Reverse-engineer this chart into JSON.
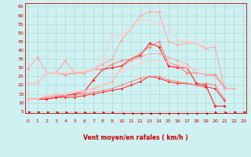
{
  "bg_color": "#cff1f1",
  "grid_color": "#aadddd",
  "xlabel": "Vent moyen/en rafales ( km/h )",
  "ylabel_ticks": [
    5,
    10,
    15,
    20,
    25,
    30,
    35,
    40,
    45,
    50,
    55,
    60,
    65
  ],
  "x_ticks": [
    0,
    1,
    2,
    3,
    4,
    5,
    6,
    7,
    8,
    9,
    10,
    11,
    12,
    13,
    14,
    15,
    16,
    17,
    18,
    19,
    20,
    21,
    22,
    23
  ],
  "xlim": [
    -0.3,
    23.3
  ],
  "ylim": [
    4,
    67
  ],
  "lines": [
    {
      "color": "#ff2222",
      "lw": 0.8,
      "marker": "D",
      "ms": 1.8,
      "y": [
        12,
        12,
        12,
        13,
        14,
        15,
        16,
        23,
        29,
        30,
        31,
        35,
        37,
        44,
        42,
        31,
        30,
        30,
        21,
        20,
        8,
        8,
        null,
        null
      ]
    },
    {
      "color": "#ff2222",
      "lw": 0.7,
      "marker": "D",
      "ms": 1.5,
      "y": [
        12,
        12,
        12,
        13,
        13,
        13,
        14,
        15,
        16,
        17,
        18,
        20,
        22,
        25,
        24,
        22,
        21,
        21,
        20,
        19,
        18,
        11,
        null,
        null
      ]
    },
    {
      "color": "#ff8080",
      "lw": 0.8,
      "marker": "D",
      "ms": 1.8,
      "y": [
        21,
        21,
        27,
        27,
        26,
        27,
        27,
        29,
        29,
        32,
        34,
        35,
        38,
        42,
        45,
        33,
        31,
        27,
        27,
        26,
        26,
        19,
        null,
        null
      ]
    },
    {
      "color": "#ff8080",
      "lw": 0.7,
      "marker": "D",
      "ms": 1.5,
      "y": [
        12,
        12,
        13,
        14,
        14,
        14,
        15,
        16,
        17,
        18,
        20,
        22,
        24,
        25,
        25,
        23,
        22,
        21,
        20,
        21,
        20,
        12,
        null,
        null
      ]
    },
    {
      "color": "#ffaaaa",
      "lw": 0.8,
      "marker": "D",
      "ms": 1.8,
      "y": [
        29,
        36,
        27,
        27,
        34,
        27,
        27,
        29,
        32,
        35,
        46,
        52,
        60,
        62,
        62,
        45,
        43,
        44,
        44,
        41,
        42,
        18,
        18,
        null
      ]
    },
    {
      "color": "#ffaaaa",
      "lw": 0.7,
      "marker": "D",
      "ms": 1.5,
      "y": [
        12,
        12,
        14,
        15,
        15,
        16,
        17,
        18,
        20,
        22,
        30,
        34,
        36,
        38,
        38,
        36,
        34,
        32,
        27,
        26,
        25,
        18,
        18,
        null
      ]
    },
    {
      "color": "#ffcccc",
      "lw": 0.8,
      "marker": "D",
      "ms": 1.8,
      "y": [
        21,
        21,
        27,
        27,
        27,
        28,
        28,
        29,
        34,
        48,
        49,
        52,
        57,
        57,
        55,
        54,
        46,
        45,
        44,
        42,
        null,
        null,
        null,
        null
      ]
    },
    {
      "color": "#ffcccc",
      "lw": 0.7,
      "marker": "D",
      "ms": 1.5,
      "y": [
        12,
        12,
        14,
        15,
        15,
        16,
        16,
        17,
        20,
        26,
        28,
        30,
        33,
        34,
        34,
        33,
        32,
        30,
        29,
        27,
        null,
        null,
        null,
        null
      ]
    }
  ],
  "arrow_color": "#cc0000",
  "label_fontsize": 5.5,
  "tick_fontsize": 4.5,
  "arrow_angles": [
    90,
    90,
    85,
    80,
    75,
    70,
    65,
    60,
    55,
    50,
    45,
    40,
    35,
    30,
    25,
    20,
    15,
    10,
    15,
    30,
    50,
    70,
    85,
    90
  ]
}
